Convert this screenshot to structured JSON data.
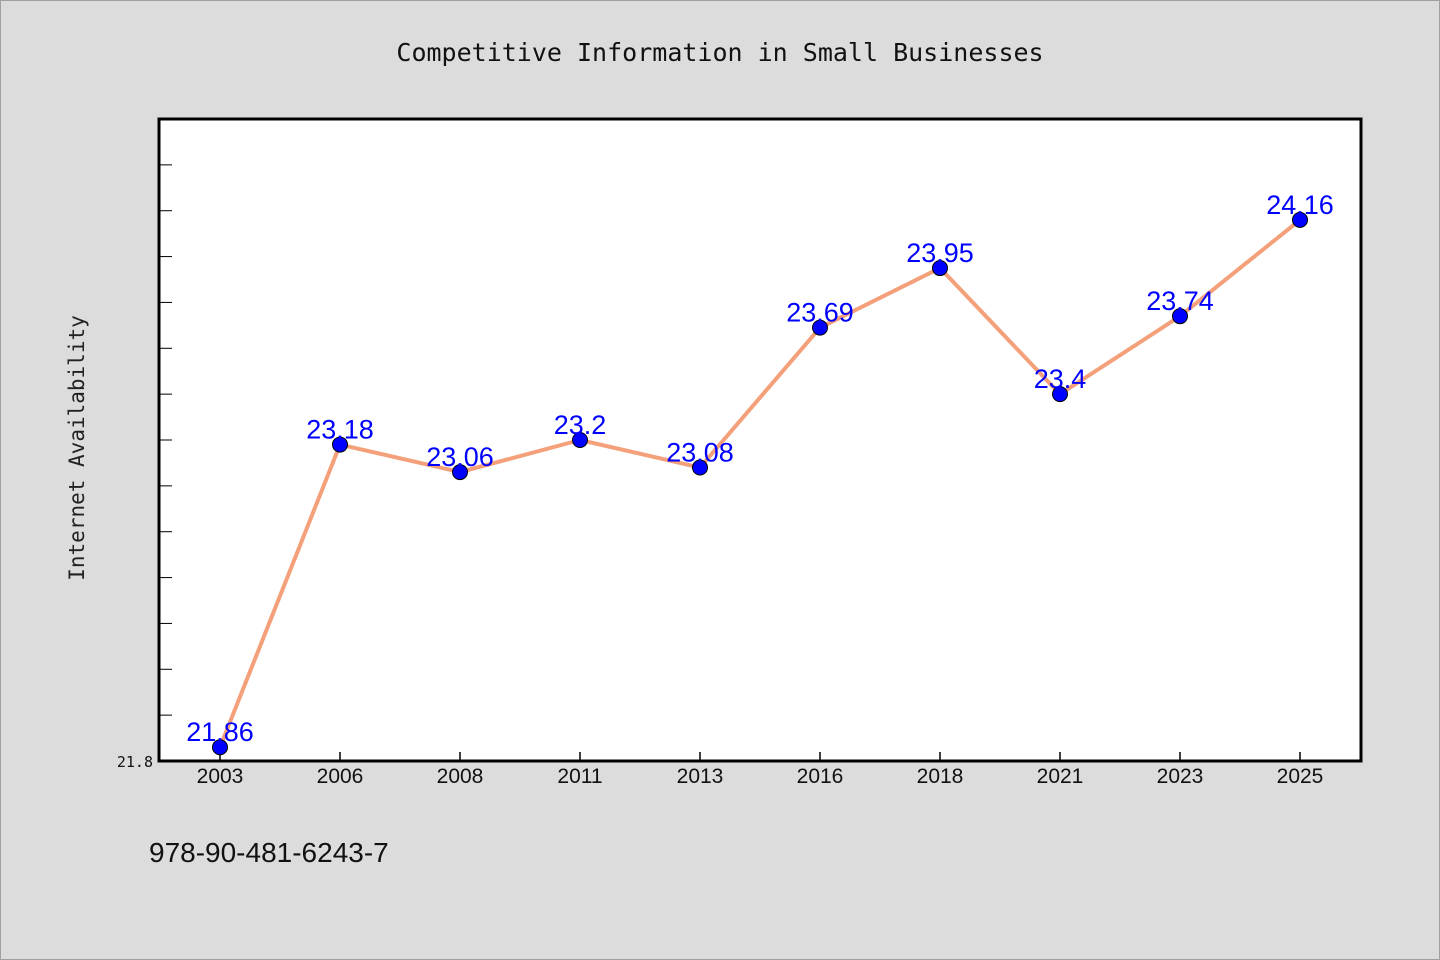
{
  "chart_data": {
    "type": "line",
    "title": "Competitive Information in Small Businesses",
    "xlabel": "",
    "ylabel": "Internet Availability",
    "categories": [
      "2003",
      "2006",
      "2008",
      "2011",
      "2013",
      "2016",
      "2018",
      "2021",
      "2023",
      "2025"
    ],
    "series": [
      {
        "values": [
          21.86,
          23.18,
          23.06,
          23.2,
          23.08,
          23.69,
          23.95,
          23.4,
          23.74,
          24.16
        ],
        "data_labels": [
          "21.86",
          "23.18",
          "23.06",
          "23.2",
          "23.08",
          "23.69",
          "23.95",
          "23.4",
          "23.74",
          "24.16"
        ],
        "line_color": "#f4a07a",
        "marker_color": "#0000ff"
      }
    ],
    "ylim": [
      21.8,
      24.6
    ],
    "y_tick_labels": [
      "21.8"
    ],
    "grid": false,
    "legend": "none"
  },
  "footnote": "978-90-481-6243-7",
  "colors": {
    "background": "#dcdcdc",
    "plot_background": "#ffffff",
    "line": "#f4a07a",
    "marker": "#0000ff",
    "data_label": "#0000ff"
  }
}
